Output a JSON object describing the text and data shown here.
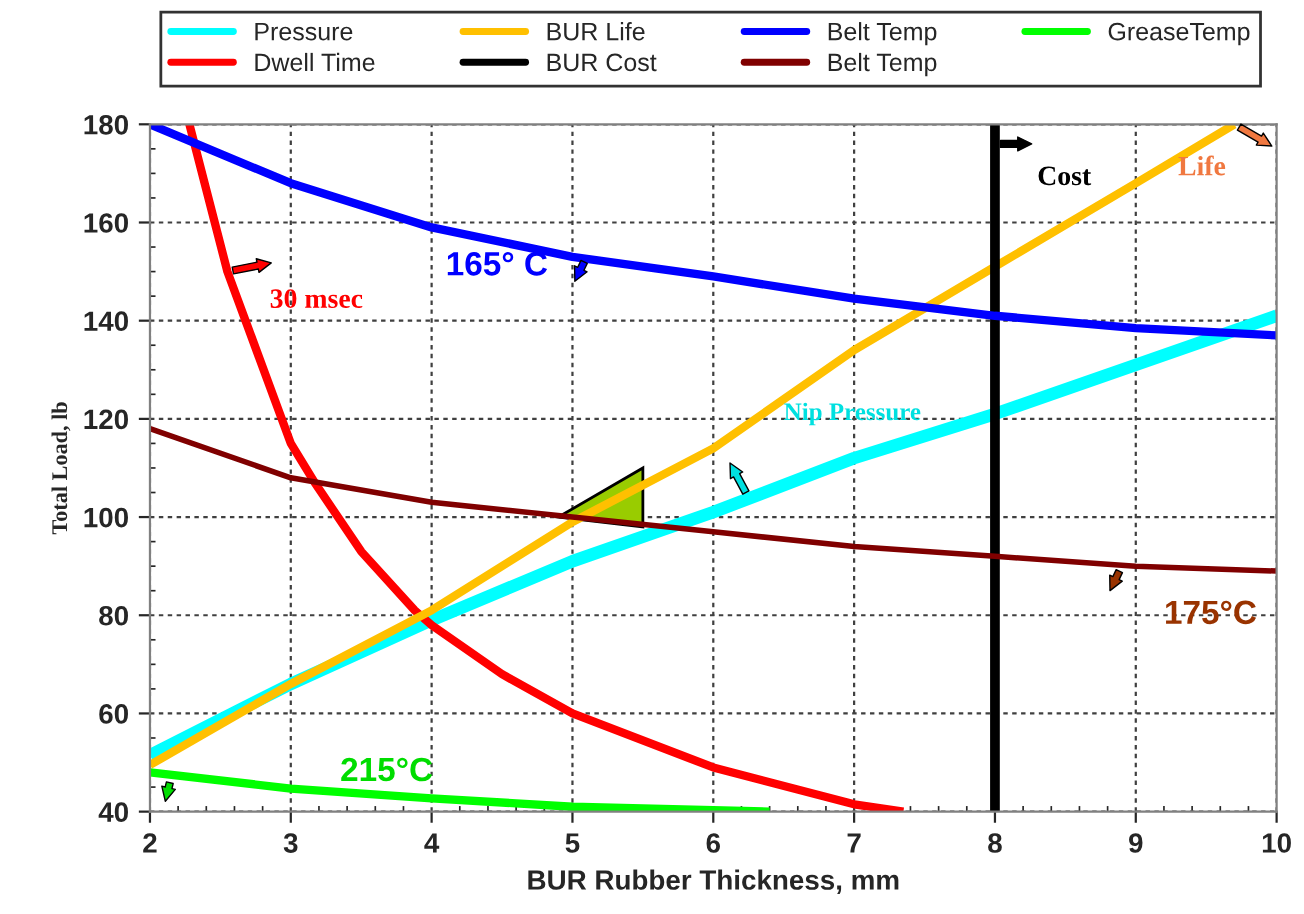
{
  "chart_data": {
    "type": "line",
    "xlabel": "BUR Rubber Thickness, mm",
    "ylabel": "Total Load, lb",
    "xlim": [
      2,
      10
    ],
    "xticks": [
      2,
      3,
      4,
      5,
      6,
      7,
      8,
      9,
      10
    ],
    "ylim": [
      40,
      180
    ],
    "yticks": [
      40,
      60,
      80,
      100,
      120,
      140,
      160,
      180
    ],
    "grid": true,
    "legend": "top",
    "marker": "none",
    "line_style": "solid",
    "series": [
      {
        "name": "Pressure",
        "color": "#00ffff",
        "x": [
          2,
          3,
          4,
          5,
          6,
          7,
          8,
          9,
          10
        ],
        "values": [
          51.5,
          66,
          79,
          91,
          101,
          112,
          121,
          131,
          141
        ]
      },
      {
        "name": "Dwell Time",
        "color": "#ff0000",
        "x": [
          2.28,
          2.55,
          3,
          3.17,
          3.5,
          3.88,
          4,
          4.5,
          5,
          6,
          7,
          7.35
        ],
        "values": [
          180,
          150,
          115,
          107,
          93,
          81,
          78,
          68,
          60,
          49,
          41.5,
          40
        ]
      },
      {
        "name": "BUR Life",
        "color": "#ffc000",
        "x": [
          2,
          3,
          4,
          5,
          6,
          7,
          8,
          9,
          9.7
        ],
        "values": [
          49.5,
          66,
          81,
          99,
          114,
          134,
          151,
          168,
          180
        ]
      },
      {
        "name": "BUR Cost",
        "color": "#000000",
        "x": [
          8,
          8
        ],
        "values": [
          40,
          180
        ]
      },
      {
        "name": "Belt Temp",
        "color": "#0000ff",
        "x": [
          2,
          3,
          4,
          5,
          6,
          7,
          8,
          9,
          10
        ],
        "values": [
          180,
          168,
          159,
          153,
          149,
          144.5,
          141,
          138.5,
          137
        ]
      },
      {
        "name": "Belt Temp",
        "color": "#800000",
        "x": [
          2,
          3,
          4,
          5,
          6,
          7,
          8,
          9,
          10
        ],
        "values": [
          118,
          108,
          103,
          100,
          97,
          94,
          92,
          90,
          89
        ]
      },
      {
        "name": "GreaseTemp",
        "color": "#00ff00",
        "x": [
          2,
          3,
          4,
          5,
          6,
          6.4
        ],
        "values": [
          48,
          44.7,
          42.7,
          41,
          40.3,
          40
        ]
      }
    ],
    "annotations": [
      {
        "text": "Cost",
        "x": 8,
        "y": 176
      },
      {
        "text": "Life",
        "x": 9.7,
        "y": 180
      },
      {
        "text": "165° C",
        "x": 5.1,
        "y": 153
      },
      {
        "text": "30 msec",
        "x": 2.55,
        "y": 150
      },
      {
        "text": "Nip Pressure",
        "x": 7,
        "y": 112
      },
      {
        "text": "175°C",
        "x": 8.9,
        "y": 90
      },
      {
        "text": "215°C",
        "x": 3.4,
        "y": 44
      }
    ]
  }
}
